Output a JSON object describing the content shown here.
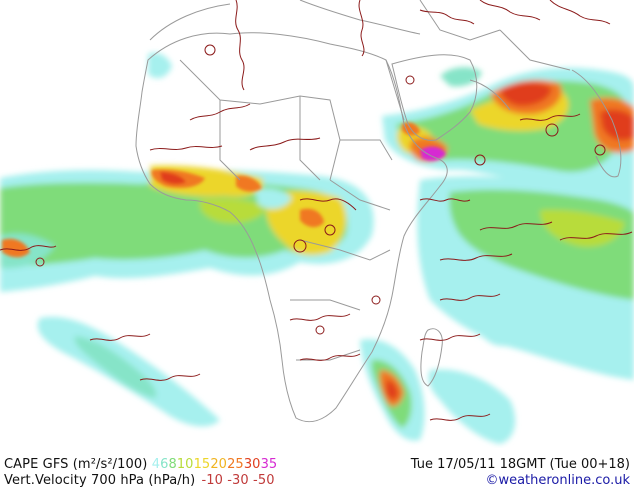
{
  "legend": {
    "line1_label": "CAPE GFS (m²/s²/100)",
    "scale": [
      {
        "v": "4",
        "color": "#a6f0ee"
      },
      {
        "v": "6",
        "color": "#86e4c8"
      },
      {
        "v": "8",
        "color": "#7fdc7a"
      },
      {
        "v": "10",
        "color": "#b8dc3a"
      },
      {
        "v": "15",
        "color": "#ecd62a"
      },
      {
        "v": "20",
        "color": "#f0b420"
      },
      {
        "v": "25",
        "color": "#f07820"
      },
      {
        "v": "30",
        "color": "#e03e1e"
      },
      {
        "v": "35",
        "color": "#d62ad2"
      }
    ],
    "line2_label": "Vert.Velocity 700 hPa (hPa/h)",
    "vv_values": [
      {
        "v": "-10",
        "color": "#c03a3a"
      },
      {
        "v": "-30",
        "color": "#c03a3a"
      },
      {
        "v": "-50",
        "color": "#c03a3a"
      }
    ],
    "datetime": "Tue 17/05/11 18GMT  (Tue 00+18)",
    "credit": "©weatheronline.co.uk"
  },
  "colors": {
    "coast": "#9a9a9a",
    "vv_contour": "#8b1a1a",
    "cape_4": "#a6f0ee",
    "cape_6": "#86e4c8",
    "cape_8": "#7fdc7a",
    "cape_10": "#b8dc3a",
    "cape_15": "#ecd62a",
    "cape_20": "#f0b420",
    "cape_25": "#f07820",
    "cape_30": "#e03e1e",
    "cape_35": "#d62ad2"
  }
}
